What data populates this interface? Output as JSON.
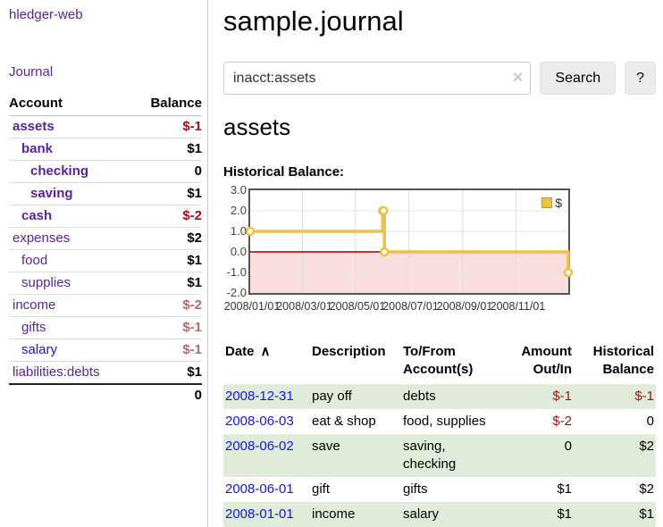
{
  "app": {
    "brand": "hledger-web"
  },
  "colors": {
    "purple": "#5c2399",
    "link_blue": "#1414dd",
    "neg_strong": "#9b1313",
    "neg_soft": "#b56a6a",
    "row_green": "#dfecda",
    "gold": "#edc240",
    "pink": "#fbdede",
    "zero_line": "#990000"
  },
  "sidebar": {
    "journal_label": "Journal",
    "accounts": {
      "header_account": "Account",
      "header_balance": "Balance",
      "rows": [
        {
          "name": "assets",
          "indent": 0,
          "bold": true,
          "balance": "$-1",
          "balance_style": "neg-strong"
        },
        {
          "name": "bank",
          "indent": 1,
          "bold": true,
          "balance": "$1",
          "balance_style": "pos"
        },
        {
          "name": "checking",
          "indent": 2,
          "bold": true,
          "balance": "0",
          "balance_style": "pos"
        },
        {
          "name": "saving",
          "indent": 2,
          "bold": true,
          "balance": "$1",
          "balance_style": "pos"
        },
        {
          "name": "cash",
          "indent": 1,
          "bold": true,
          "balance": "$-2",
          "balance_style": "neg-strong"
        },
        {
          "name": "expenses",
          "indent": 0,
          "bold": false,
          "balance": "$2",
          "balance_style": "pos"
        },
        {
          "name": "food",
          "indent": 1,
          "bold": false,
          "balance": "$1",
          "balance_style": "pos"
        },
        {
          "name": "supplies",
          "indent": 1,
          "bold": false,
          "balance": "$1",
          "balance_style": "pos"
        },
        {
          "name": "income",
          "indent": 0,
          "bold": false,
          "balance": "$-2",
          "balance_style": "neg-soft"
        },
        {
          "name": "gifts",
          "indent": 1,
          "bold": false,
          "balance": "$-1",
          "balance_style": "neg-soft"
        },
        {
          "name": "salary",
          "indent": 1,
          "bold": false,
          "balance": "$-1",
          "balance_style": "neg-soft",
          "name_color": "blue"
        },
        {
          "name": "liabilities:debts",
          "indent": 0,
          "bold": false,
          "balance": "$1",
          "balance_style": "pos"
        }
      ],
      "total": "0"
    }
  },
  "main": {
    "title": "sample.journal",
    "search": {
      "value": "inacct:assets",
      "clear_icon": "×",
      "button_label": "Search",
      "help_label": "?"
    },
    "account_heading": "assets",
    "section_label": "Historical Balance:"
  },
  "chart_data": {
    "type": "line",
    "step": true,
    "series": [
      {
        "name": "$",
        "color": "#edc240",
        "points": [
          [
            "2008-01-01",
            1
          ],
          [
            "2008-06-01",
            2
          ],
          [
            "2008-06-02",
            2
          ],
          [
            "2008-06-03",
            0
          ],
          [
            "2008-12-31",
            -1
          ]
        ]
      }
    ],
    "x_range": [
      "2008-01-01",
      "2008-12-31"
    ],
    "x_tick_labels": [
      "2008/01/01",
      "2008/03/01",
      "2008/05/01",
      "2008/07/01",
      "2008/09/01",
      "2008/11/01"
    ],
    "y_ticks": [
      "3.0",
      "2.0",
      "1.0",
      "0.0",
      "-1.0",
      "-2.0"
    ],
    "ylim": [
      -2,
      3
    ],
    "grid": true,
    "negative_region_color": "#fbdede",
    "zero_line_color": "#990000",
    "legend": {
      "label": "$",
      "position": "top-right"
    }
  },
  "register": {
    "sort_glyph": "∧",
    "columns": [
      {
        "label": "Date",
        "align": "left",
        "sorted": true
      },
      {
        "label": "Description",
        "align": "left"
      },
      {
        "label": "To/From Account(s)",
        "align": "left"
      },
      {
        "label": "Amount Out/In",
        "align": "right"
      },
      {
        "label": "Historical Balance",
        "align": "right"
      }
    ],
    "rows": [
      {
        "date": "2008-12-31",
        "description": "pay off",
        "accounts": "debts",
        "amount": "$-1",
        "balance": "$-1"
      },
      {
        "date": "2008-06-03",
        "description": "eat & shop",
        "accounts": "food, supplies",
        "amount": "$-2",
        "balance": "0"
      },
      {
        "date": "2008-06-02",
        "description": "save",
        "accounts": "saving, checking",
        "amount": "0",
        "balance": "$2"
      },
      {
        "date": "2008-06-01",
        "description": "gift",
        "accounts": "gifts",
        "amount": "$1",
        "balance": "$2"
      },
      {
        "date": "2008-01-01",
        "description": "income",
        "accounts": "salary",
        "amount": "$1",
        "balance": "$1"
      }
    ]
  }
}
